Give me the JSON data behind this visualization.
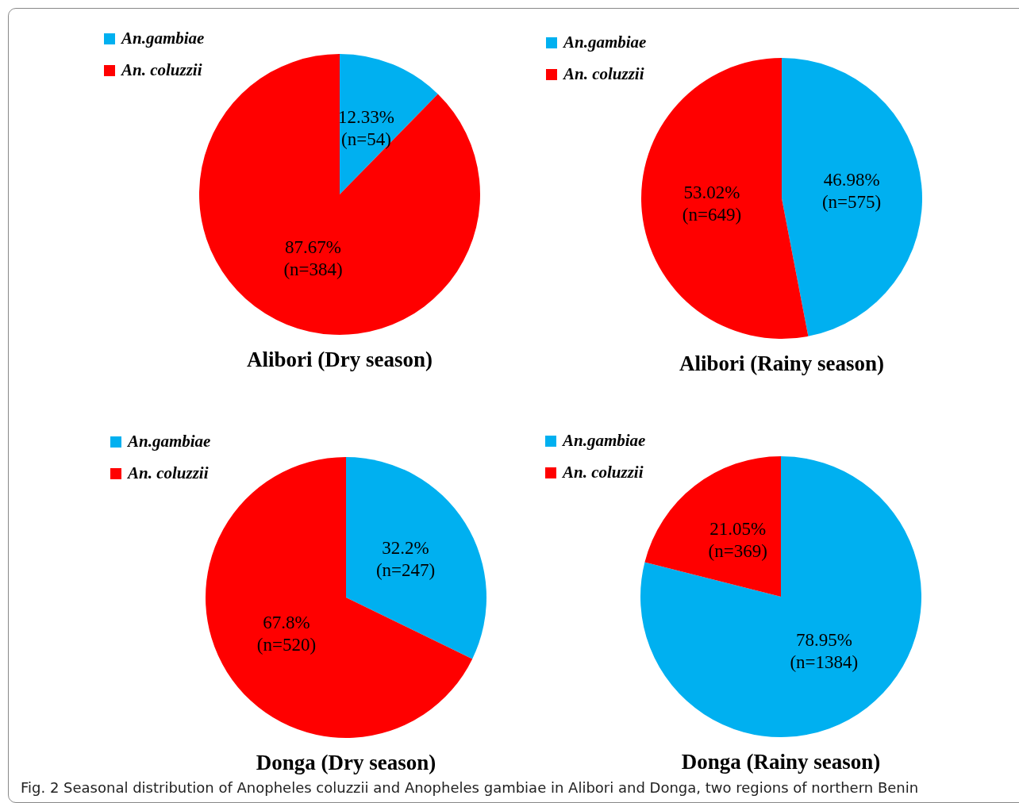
{
  "chart_data": [
    {
      "type": "pie",
      "title": "Alibori (Dry season)",
      "categories": [
        "An.gambiae",
        "An. coluzzii"
      ],
      "values": [
        54,
        384
      ],
      "colors": [
        "#00b0f0",
        "#ff0000"
      ],
      "value_labels": [
        "12.33%\n(n=54)",
        "87.67%\n(n=384)"
      ],
      "legend": "top left"
    },
    {
      "type": "pie",
      "title": "Alibori (Rainy season)",
      "categories": [
        "An.gambiae",
        "An. coluzzii"
      ],
      "values": [
        575,
        649
      ],
      "colors": [
        "#00b0f0",
        "#ff0000"
      ],
      "value_labels": [
        "46.98%\n(n=575)",
        "53.02%\n(n=649)"
      ],
      "legend": "top left"
    },
    {
      "type": "pie",
      "title": "Donga (Dry season)",
      "categories": [
        "An.gambiae",
        "An. coluzzii"
      ],
      "values": [
        247,
        520
      ],
      "colors": [
        "#00b0f0",
        "#ff0000"
      ],
      "value_labels": [
        "32.2%\n(n=247)",
        "67.8%\n(n=520)"
      ],
      "legend": "top left"
    },
    {
      "type": "pie",
      "title": "Donga (Rainy season)",
      "categories": [
        "An.gambiae",
        "An. coluzzii"
      ],
      "values": [
        1384,
        369
      ],
      "colors": [
        "#00b0f0",
        "#ff0000"
      ],
      "value_labels": [
        "78.95%\n(n=1384)",
        "21.05%\n(n=369)"
      ],
      "legend": "top left",
      "annotations": [
        "Fig. 2  Seasonal distribution of Anopheles coluzzii and Anopheles gambiae in Alibori and Donga, two regions of northern Benin"
      ]
    }
  ]
}
